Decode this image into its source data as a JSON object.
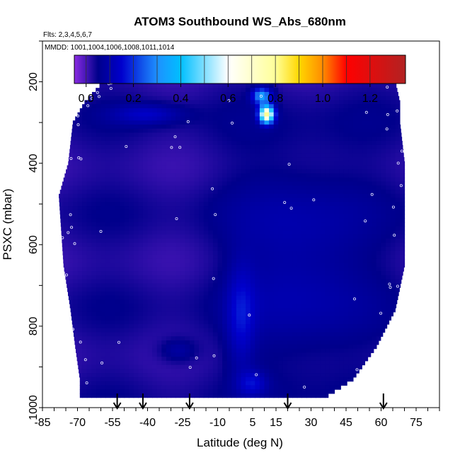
{
  "chart_data": {
    "type": "heatmap",
    "title": "ATOM3 Southbound WS_Abs_680nm",
    "subtitle_flights": "Flts: 2,3,4,5,6,7",
    "subtitle_dates": "MMDD: 1001,1004,1006,1008,1011,1014",
    "xlabel": "Latitude (deg N)",
    "ylabel": "PSXC (mbar)",
    "xlim": [
      -85,
      85
    ],
    "ylim": [
      1000,
      100
    ],
    "x_tick_labels": [
      "-85",
      "-70",
      "-55",
      "-40",
      "-25",
      "-10",
      "5",
      "15",
      "30",
      "45",
      "60",
      "75"
    ],
    "y_tick_labels": [
      "200",
      "400",
      "600",
      "800",
      "1000"
    ],
    "colorbar": {
      "range": [
        -0.05,
        1.35
      ],
      "tick_labels": [
        "0.0",
        "0.2",
        "0.4",
        "0.6",
        "0.8",
        "1.0",
        "1.2"
      ],
      "tick_values": [
        0,
        0.2,
        0.4,
        0.6,
        0.8,
        1.0,
        1.2
      ],
      "colors": [
        "#8a2be2",
        "#00008b",
        "#0000cd",
        "#1e90ff",
        "#00bfff",
        "#ffffff",
        "#ffff99",
        "#ffd700",
        "#ff8c00",
        "#ff0000",
        "#b22222"
      ],
      "color_stops": [
        -0.05,
        0.05,
        0.15,
        0.3,
        0.4,
        0.6,
        0.8,
        0.9,
        1.0,
        1.1,
        1.35
      ]
    },
    "profile_arrows_lat": [
      -53,
      -42,
      -22,
      20,
      61
    ],
    "base_value": 0.03,
    "enhancements": [
      {
        "lat": 11,
        "p": 280,
        "dlat": 3,
        "dp": 20,
        "amp": 0.75
      },
      {
        "lat": 9,
        "p": 235,
        "dlat": 4,
        "dp": 20,
        "amp": 0.3
      },
      {
        "lat": -40,
        "p": 280,
        "dlat": 15,
        "dp": 25,
        "amp": 0.1
      },
      {
        "lat": 0,
        "p": 780,
        "dlat": 6,
        "dp": 130,
        "amp": 0.1
      },
      {
        "lat": 25,
        "p": 650,
        "dlat": 28,
        "dp": 260,
        "amp": 0.08
      },
      {
        "lat": 5,
        "p": 940,
        "dlat": 6,
        "dp": 30,
        "amp": 0.1
      },
      {
        "lat": -27,
        "p": 860,
        "dlat": 8,
        "dp": 30,
        "amp": 0.07
      }
    ],
    "data_envelope": [
      {
        "p": 175,
        "lat_min": -55,
        "lat_max": 65
      },
      {
        "p": 250,
        "lat_min": -67,
        "lat_max": 68
      },
      {
        "p": 300,
        "lat_min": -72,
        "lat_max": 68
      },
      {
        "p": 400,
        "lat_min": -74,
        "lat_max": 70
      },
      {
        "p": 480,
        "lat_min": -78,
        "lat_max": 70
      },
      {
        "p": 650,
        "lat_min": -76,
        "lat_max": 70
      },
      {
        "p": 760,
        "lat_min": -73,
        "lat_max": 66
      },
      {
        "p": 850,
        "lat_min": -71,
        "lat_max": 58
      },
      {
        "p": 930,
        "lat_min": -69,
        "lat_max": 48
      },
      {
        "p": 975,
        "lat_min": -69,
        "lat_max": 36
      }
    ]
  }
}
